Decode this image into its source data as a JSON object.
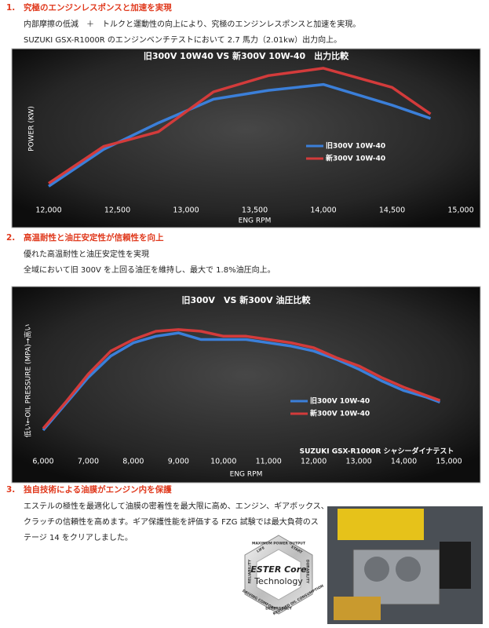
{
  "sections": [
    {
      "number": "1.",
      "heading": "究極のエンジンレスポンスと加速を実現",
      "lines": [
        "内部摩擦の低減　＋　トルクと運動性の向上により、究極のエンジンレスポンスと加速を実現。",
        "SUZUKI GSX-R1000R のエンジンベンチテストにおいて 2.7 馬力（2.01kw）出力向上。"
      ]
    },
    {
      "number": "2.",
      "heading": "高温耐性と油圧安定性が信頼性を向上",
      "lines": [
        "優れた高温耐性と油圧安定性を実現",
        "全域において旧 300V を上回る油圧を維持し、最大で 1.8%油圧向上。"
      ]
    },
    {
      "number": "3.",
      "heading": "独自技術による油膜がエンジン内を保護",
      "lines": [
        "エステルの極性を最適化して油膜の密着性を最大限に高め、エンジン、ギアボックス、",
        "クラッチの信頼性を高めます。ギア保護性能を評価する FZG 試験では最大負荷のス",
        "テージ 14 をクリアしました。"
      ]
    }
  ],
  "badge": {
    "title": "ESTER Core",
    "subtitle": "Technology",
    "ring": [
      "MAXIMUM POWER OUTPUT",
      "START",
      "DURABILITY",
      "REDUCED OIL CONSUMPTION",
      "DETERGENCY",
      "DRIVING COMFORT",
      "RELIABILITY",
      "LIFE"
    ]
  },
  "chart_data": [
    {
      "type": "line",
      "title": "旧300V 10W40 VS 新300V 10W-40　出力比較",
      "x_label": "ENG RPM",
      "y_label": "POWER (KW)",
      "x": [
        12000,
        12400,
        12800,
        13200,
        13600,
        14000,
        14500,
        14780
      ],
      "xlim": [
        12000,
        15000
      ],
      "xticks": [
        {
          "value": 12000,
          "label": "12,000"
        },
        {
          "value": 12500,
          "label": "12,500"
        },
        {
          "value": 13000,
          "label": "13,000"
        },
        {
          "value": 13500,
          "label": "13,500"
        },
        {
          "value": 14000,
          "label": "14,000"
        },
        {
          "value": 14500,
          "label": "14,500"
        },
        {
          "value": 15000,
          "label": "15,000"
        }
      ],
      "ylim": [
        0,
        100
      ],
      "series": [
        {
          "name": "旧300V 10W-40",
          "color": "#3b7fd9",
          "values": [
            11,
            36,
            54,
            70,
            76,
            80,
            66,
            57
          ]
        },
        {
          "name": "新300V 10W-40",
          "color": "#d33b3b",
          "values": [
            13,
            38,
            48,
            75,
            86,
            91,
            78,
            60
          ]
        }
      ]
    },
    {
      "type": "line",
      "title": "旧300V　VS 新300V 油圧比較",
      "x_label": "ENG RPM",
      "y_label": "低い←OIL PRESSURE (MPA)→高い",
      "annotation": "SUZUKI GSX-R1000R シャシーダイナテスト",
      "x": [
        6000,
        6500,
        7000,
        7500,
        8000,
        8500,
        9000,
        9500,
        10000,
        10500,
        11000,
        11500,
        12000,
        12500,
        13000,
        13500,
        14000,
        14500,
        14800
      ],
      "xlim": [
        6000,
        15000
      ],
      "xticks": [
        {
          "value": 6000,
          "label": "6,000"
        },
        {
          "value": 7000,
          "label": "7,000"
        },
        {
          "value": 8000,
          "label": "8,000"
        },
        {
          "value": 9000,
          "label": "9,000"
        },
        {
          "value": 10000,
          "label": "10,000"
        },
        {
          "value": 11000,
          "label": "11,000"
        },
        {
          "value": 12000,
          "label": "12,000"
        },
        {
          "value": 13000,
          "label": "13,000"
        },
        {
          "value": 14000,
          "label": "14,000"
        },
        {
          "value": 15000,
          "label": "15,000"
        }
      ],
      "ylim": [
        0,
        100
      ],
      "series": [
        {
          "name": "旧300V 10W-40",
          "color": "#3b7fd9",
          "values": [
            20,
            36,
            52,
            65,
            73,
            77,
            79,
            75,
            75,
            75,
            73,
            71,
            68,
            63,
            57,
            50,
            44,
            40,
            37
          ]
        },
        {
          "name": "新300V 10W-40",
          "color": "#d33b3b",
          "values": [
            21,
            37,
            54,
            68,
            75,
            80,
            81,
            80,
            77,
            77,
            75,
            73,
            70,
            64,
            59,
            52,
            46,
            41,
            38
          ]
        }
      ]
    }
  ]
}
